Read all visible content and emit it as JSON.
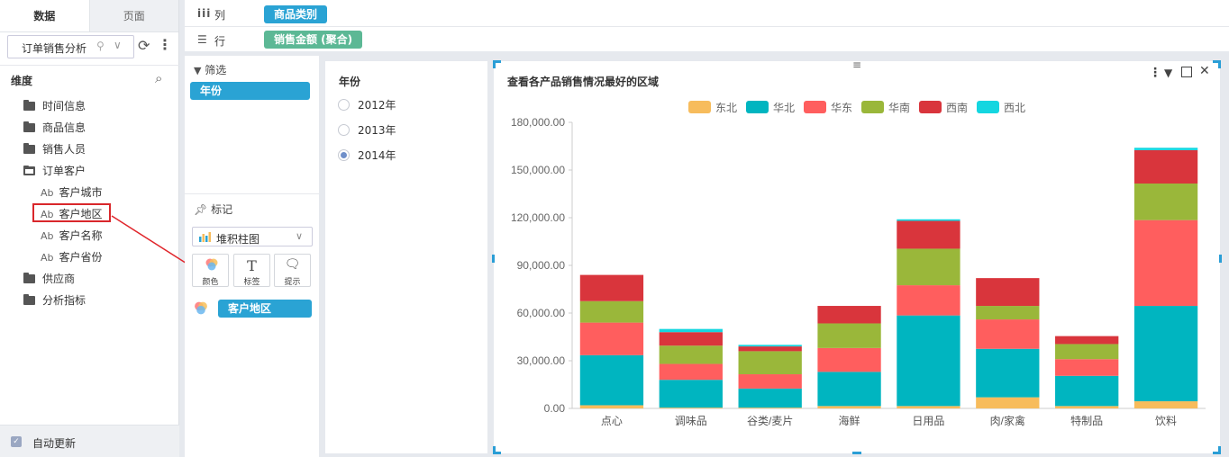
{
  "left_panel": {
    "tabs": [
      "数据",
      "页面"
    ],
    "datasource": "订单销售分析",
    "dim_header": "维度",
    "tree": [
      {
        "label": "时间信息",
        "kind": "folder"
      },
      {
        "label": "商品信息",
        "kind": "folder"
      },
      {
        "label": "销售人员",
        "kind": "folder"
      },
      {
        "label": "订单客户",
        "kind": "folder-open"
      },
      {
        "label": "客户城市",
        "kind": "field"
      },
      {
        "label": "客户地区",
        "kind": "field"
      },
      {
        "label": "客户名称",
        "kind": "field"
      },
      {
        "label": "客户省份",
        "kind": "field"
      },
      {
        "label": "供应商",
        "kind": "folder"
      },
      {
        "label": "分析指标",
        "kind": "folder"
      }
    ],
    "field_prefix": "Ab",
    "auto_update": "自动更新"
  },
  "shelves": {
    "columns_label": "列",
    "columns_pill": "商品类别",
    "rows_label": "行",
    "rows_pill": "销售金额 (聚合)"
  },
  "config": {
    "filter_label": "筛选",
    "filter_pill": "年份",
    "marks_label": "标记",
    "chart_type": "堆积柱图",
    "mark_buttons": [
      "颜色",
      "标签",
      "提示"
    ],
    "color_pill": "客户地区"
  },
  "filter_panel": {
    "title": "年份",
    "options": [
      "2012年",
      "2013年",
      "2014年"
    ],
    "selected": "2014年"
  },
  "chart_data": {
    "type": "bar",
    "stacked": true,
    "title": "查看各产品销售情况最好的区域",
    "categories": [
      "点心",
      "调味品",
      "谷类/麦片",
      "海鲜",
      "日用品",
      "肉/家禽",
      "特制品",
      "饮料"
    ],
    "ylim": [
      0,
      180000
    ],
    "yticks": [
      "0.00",
      "30,000.00",
      "60,000.00",
      "90,000.00",
      "120,000.00",
      "150,000.00",
      "180,000.00"
    ],
    "legend_position": "top",
    "series": [
      {
        "name": "东北",
        "color": "#f7bc5c",
        "values": [
          2000,
          500,
          500,
          1500,
          1500,
          7000,
          1500,
          4500
        ]
      },
      {
        "name": "华北",
        "color": "#00b5c0",
        "values": [
          31500,
          17500,
          12000,
          21500,
          57000,
          30500,
          19000,
          60000
        ]
      },
      {
        "name": "华东",
        "color": "#ff5e5e",
        "values": [
          20500,
          10000,
          9000,
          15000,
          19000,
          18500,
          10500,
          54000
        ]
      },
      {
        "name": "华南",
        "color": "#9ab73a",
        "values": [
          13500,
          11500,
          14500,
          15500,
          23000,
          8500,
          9500,
          23000
        ]
      },
      {
        "name": "西南",
        "color": "#d9353c",
        "values": [
          16500,
          8500,
          3000,
          11000,
          17500,
          17500,
          5000,
          21000
        ]
      },
      {
        "name": "西北",
        "color": "#14d6e0",
        "values": [
          0,
          2000,
          1000,
          0,
          1000,
          0,
          0,
          1500
        ]
      }
    ]
  }
}
